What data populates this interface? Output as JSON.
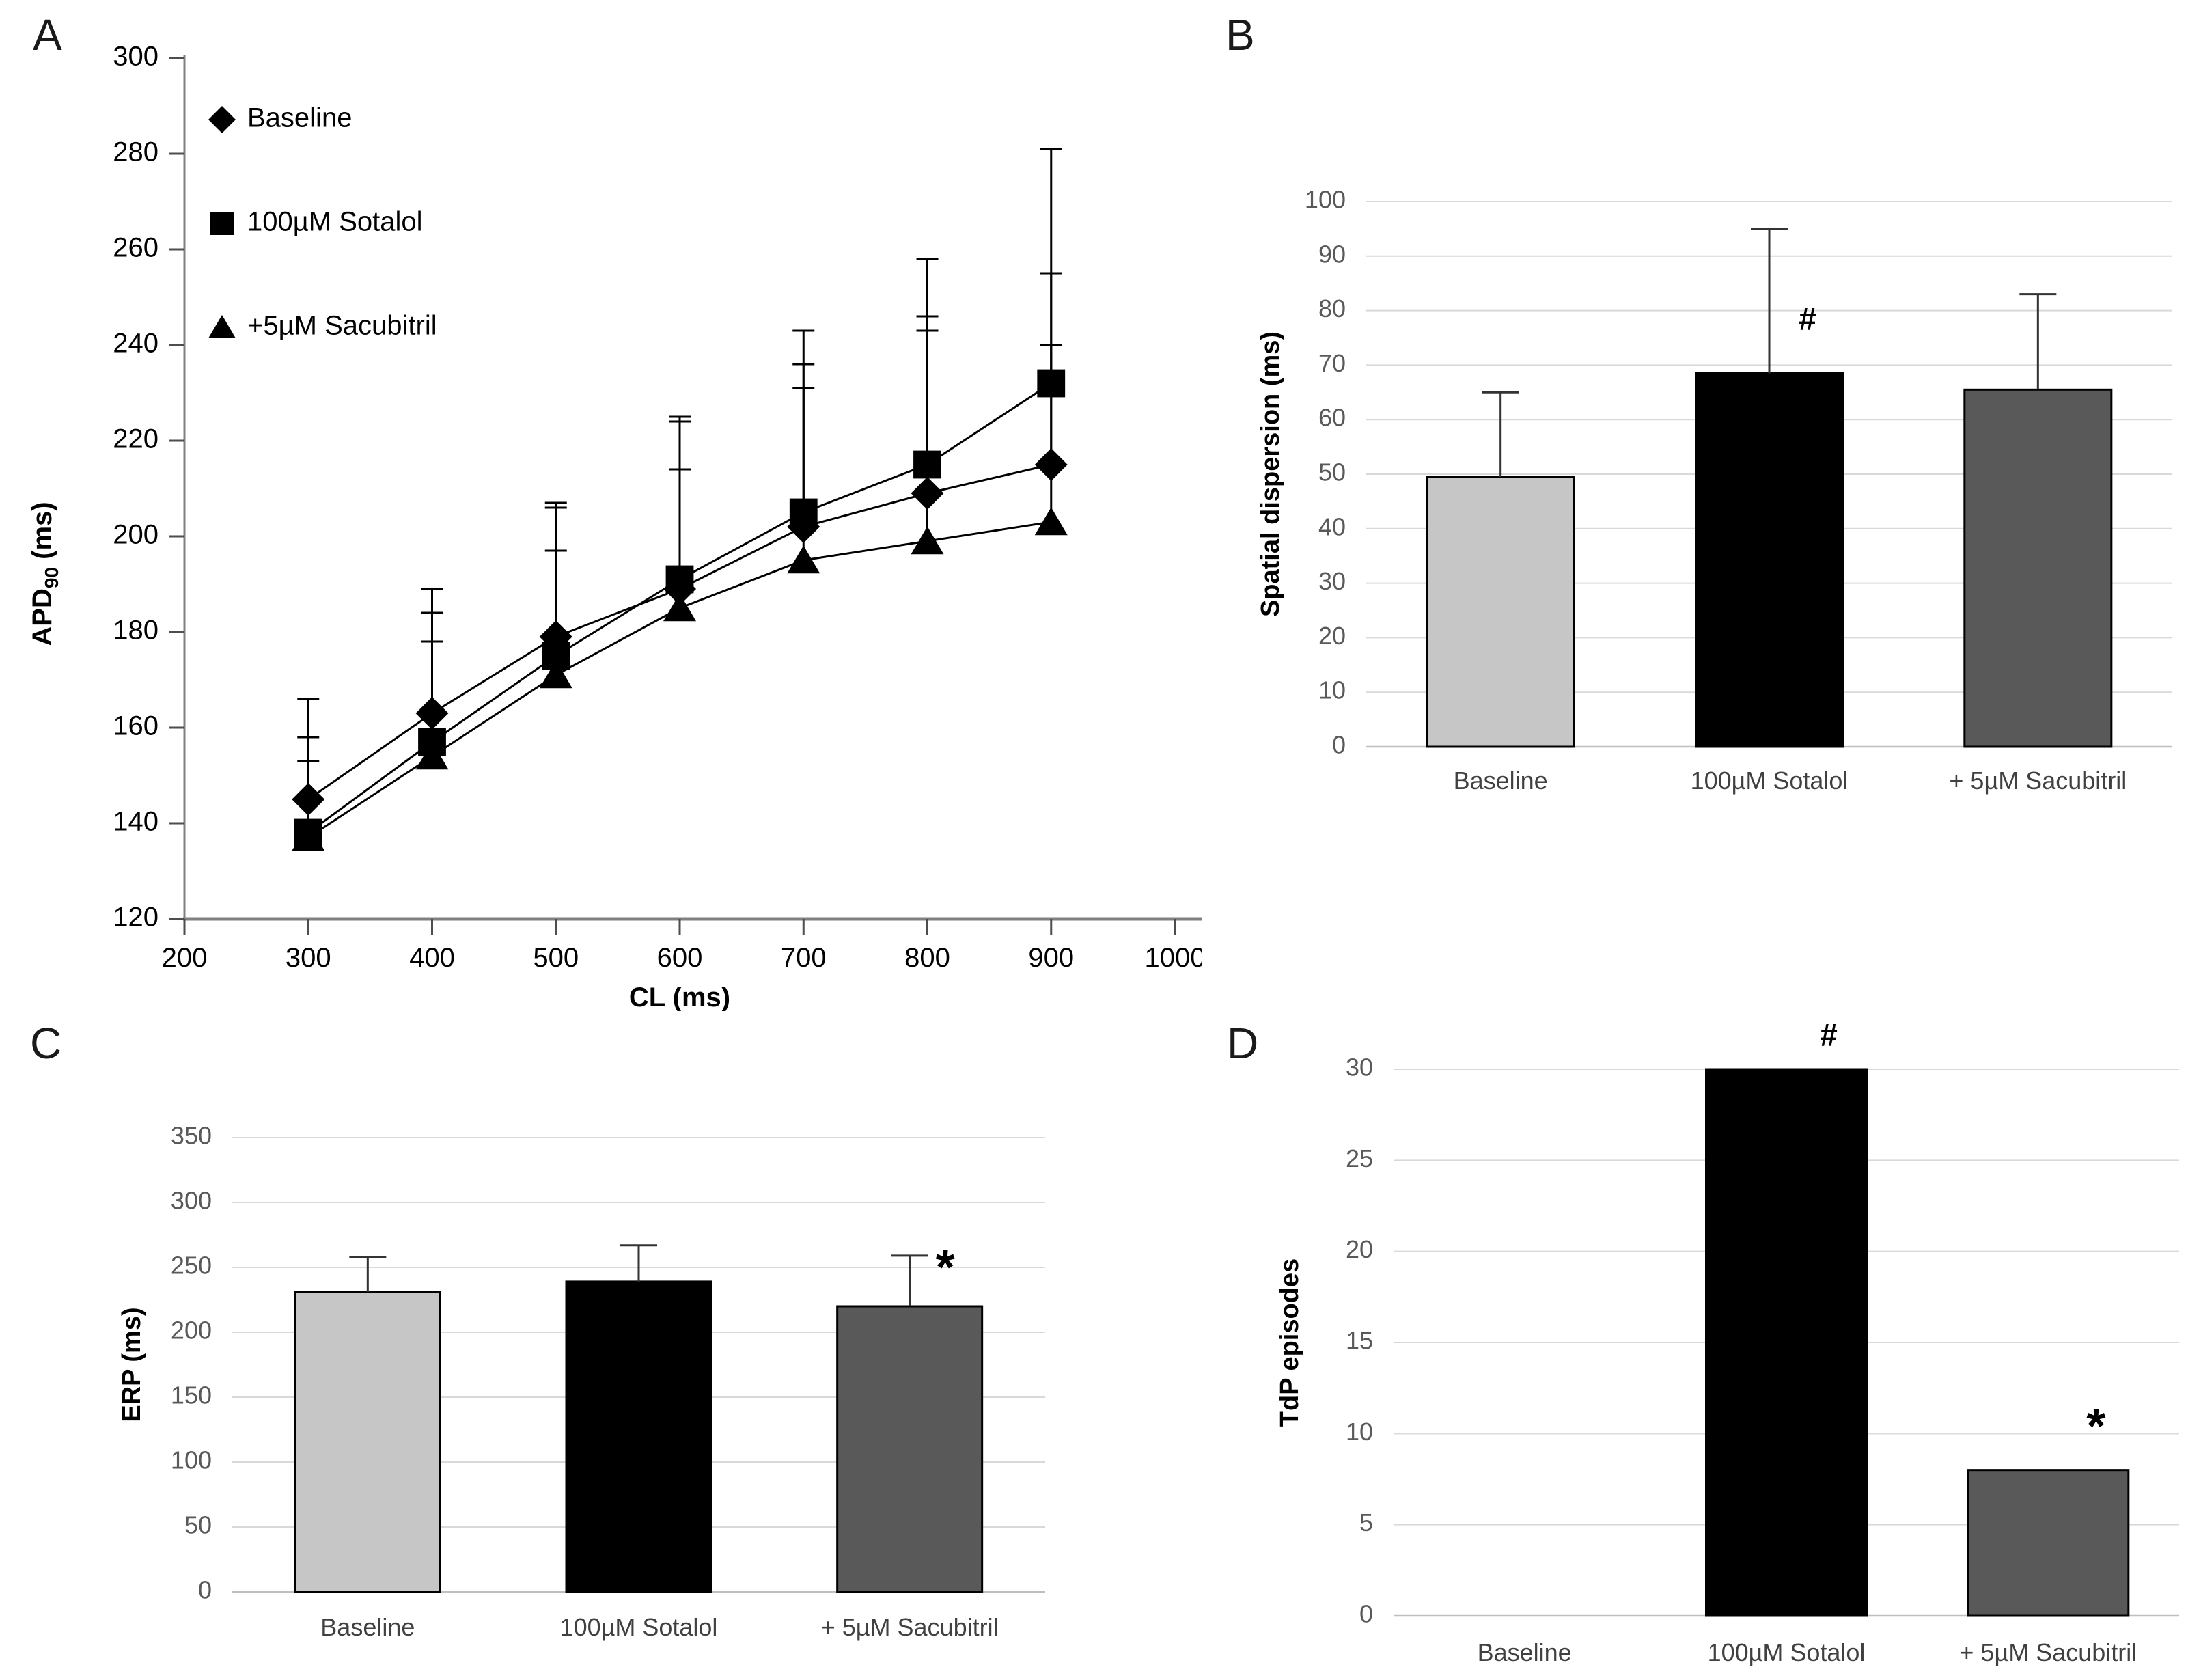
{
  "figure": {
    "background": "#ffffff",
    "panel_letters": [
      "A",
      "B",
      "C",
      "D"
    ]
  },
  "colors": {
    "baseline_bar": "#c6c6c6",
    "sotalol_bar": "#000000",
    "sacubitril_bar": "#595959",
    "gridline": "#d9d9d9",
    "zero_line": "#bfbfbf",
    "axis_line": "#808080",
    "tick_label": "#595959",
    "category_label": "#404040",
    "series_line": "#000000"
  },
  "chart_data": [
    {
      "panel": "A",
      "type": "line",
      "x": [
        300,
        400,
        500,
        600,
        700,
        800,
        900
      ],
      "series": [
        {
          "name": "Baseline",
          "marker": "diamond",
          "values": [
            145,
            163,
            179,
            189,
            202,
            209,
            215
          ],
          "err_up": [
            21,
            26,
            28,
            35,
            34,
            37,
            40
          ]
        },
        {
          "name": "100µM Sotalol",
          "marker": "square",
          "values": [
            138,
            157,
            175,
            191,
            205,
            215,
            232
          ],
          "err_up": [
            20,
            27,
            31,
            34,
            38,
            43,
            49
          ]
        },
        {
          "name": "+5µM Sacubitril",
          "marker": "triangle",
          "values": [
            137,
            154,
            171,
            185,
            195,
            199,
            203
          ],
          "err_up": [
            16,
            24,
            26,
            29,
            36,
            44,
            37
          ]
        }
      ],
      "xlabel": "CL (ms)",
      "ylabel_main": "APD",
      "ylabel_sub": "90",
      "ylabel_unit": " (ms)",
      "xlim": [
        200,
        1000
      ],
      "ylim": [
        120,
        300
      ],
      "xticks": [
        200,
        300,
        400,
        500,
        600,
        700,
        800,
        900,
        1000
      ],
      "yticks": [
        120,
        140,
        160,
        180,
        200,
        220,
        240,
        260,
        280,
        300
      ],
      "grid": false,
      "legend_position": "top-left"
    },
    {
      "panel": "B",
      "type": "bar",
      "categories": [
        "Baseline",
        "100µM Sotalol",
        "+ 5µM Sacubitril"
      ],
      "values": [
        49.5,
        68.5,
        65.5
      ],
      "err_up": [
        15.5,
        26.5,
        17.5
      ],
      "bar_color_keys": [
        "baseline_bar",
        "sotalol_bar",
        "sacubitril_bar"
      ],
      "annotations": [
        {
          "text": "#",
          "category_index": 1,
          "y": 76.5,
          "dx": 56,
          "valign": "baseline"
        }
      ],
      "ylabel": "Spatial dispersion (ms)",
      "ylim": [
        0,
        100
      ],
      "yticks": [
        0,
        10,
        20,
        30,
        40,
        50,
        60,
        70,
        80,
        90,
        100
      ],
      "grid": true
    },
    {
      "panel": "C",
      "type": "bar",
      "categories": [
        "Baseline",
        "100µM Sotalol",
        "+ 5µM Sacubitril"
      ],
      "values": [
        231,
        239,
        220
      ],
      "err_up": [
        27,
        28,
        39
      ],
      "bar_color_keys": [
        "baseline_bar",
        "sotalol_bar",
        "sacubitril_bar"
      ],
      "annotations": [
        {
          "text": "*",
          "category_index": 2,
          "y": 247,
          "dx": 52,
          "valign": "middle"
        }
      ],
      "ylabel": "ERP (ms)",
      "ylim": [
        0,
        350
      ],
      "yticks": [
        0,
        50,
        100,
        150,
        200,
        250,
        300,
        350
      ],
      "grid": true
    },
    {
      "panel": "D",
      "type": "bar",
      "categories": [
        "Baseline",
        "100µM Sotalol",
        "+ 5µM Sacubitril"
      ],
      "values": [
        0,
        30,
        8
      ],
      "err_up": [
        0,
        0,
        0
      ],
      "bar_color_keys": [
        "baseline_bar",
        "sotalol_bar",
        "sacubitril_bar"
      ],
      "annotations": [
        {
          "text": "#",
          "category_index": 1,
          "y": 31.3,
          "dx": 62,
          "valign": "baseline"
        },
        {
          "text": "*",
          "category_index": 2,
          "y": 10.2,
          "dx": 70,
          "valign": "middle"
        }
      ],
      "ylabel": "TdP episodes",
      "ylim": [
        0,
        30
      ],
      "yticks": [
        0,
        5,
        10,
        15,
        20,
        25,
        30
      ],
      "grid": true
    }
  ]
}
